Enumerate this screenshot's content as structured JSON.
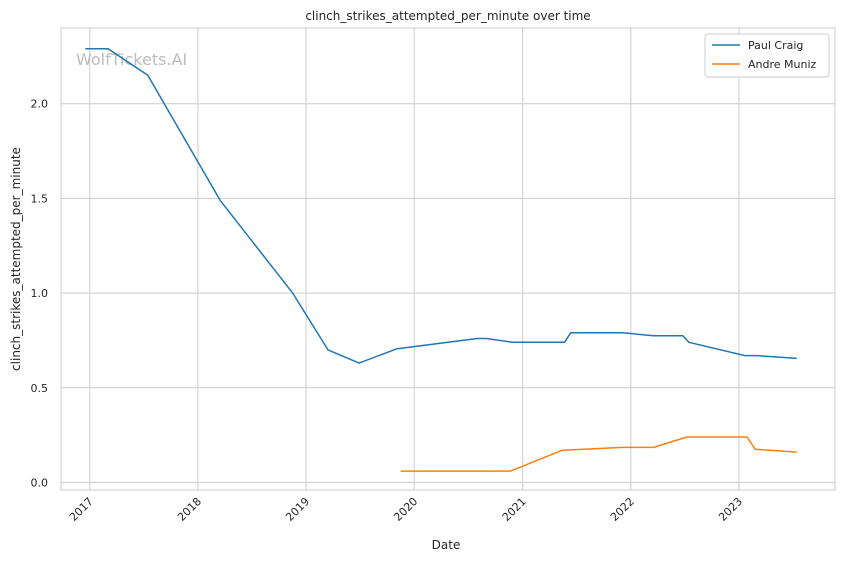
{
  "chart_data": {
    "type": "line",
    "title": "clinch_strikes_attempted_per_minute over time",
    "xlabel": "Date",
    "ylabel": "clinch_strikes_attempted_per_minute",
    "watermark": "WolfTickets.AI",
    "xlim": [
      "2016-09-26",
      "2023-11-21"
    ],
    "ylim": [
      -0.04,
      2.4
    ],
    "x_ticks": [
      "2017",
      "2018",
      "2019",
      "2020",
      "2021",
      "2022",
      "2023"
    ],
    "y_ticks": [
      "0.0",
      "0.5",
      "1.0",
      "1.5",
      "2.0"
    ],
    "grid": true,
    "legend_position": "top-right",
    "colors": {
      "Paul Craig": "#1f77b4",
      "Andre Muniz": "#ff7f0e",
      "grid": "#cccccc",
      "axes": "#cccccc"
    },
    "series": [
      {
        "name": "Paul Craig",
        "points": [
          [
            "2016-12-17",
            2.29
          ],
          [
            "2017-03-04",
            2.29
          ],
          [
            "2017-07-16",
            2.15
          ],
          [
            "2018-03-17",
            1.49
          ],
          [
            "2018-11-17",
            1.0
          ],
          [
            "2019-03-16",
            0.7
          ],
          [
            "2019-06-29",
            0.63
          ],
          [
            "2019-11-02",
            0.705
          ],
          [
            "2020-08-01",
            0.76
          ],
          [
            "2020-09-01",
            0.76
          ],
          [
            "2020-11-28",
            0.74
          ],
          [
            "2021-05-22",
            0.74
          ],
          [
            "2021-06-12",
            0.79
          ],
          [
            "2021-12-04",
            0.79
          ],
          [
            "2022-03-19",
            0.775
          ],
          [
            "2022-06-25",
            0.775
          ],
          [
            "2022-07-16",
            0.74
          ],
          [
            "2023-01-21",
            0.67
          ],
          [
            "2023-03-01",
            0.67
          ],
          [
            "2023-07-15",
            0.655
          ]
        ]
      },
      {
        "name": "Andre Muniz",
        "points": [
          [
            "2019-11-16",
            0.06
          ],
          [
            "2020-11-21",
            0.06
          ],
          [
            "2021-05-15",
            0.17
          ],
          [
            "2021-12-04",
            0.185
          ],
          [
            "2022-03-19",
            0.185
          ],
          [
            "2022-07-09",
            0.24
          ],
          [
            "2023-01-28",
            0.24
          ],
          [
            "2023-02-25",
            0.175
          ],
          [
            "2023-07-15",
            0.16
          ]
        ]
      }
    ]
  }
}
